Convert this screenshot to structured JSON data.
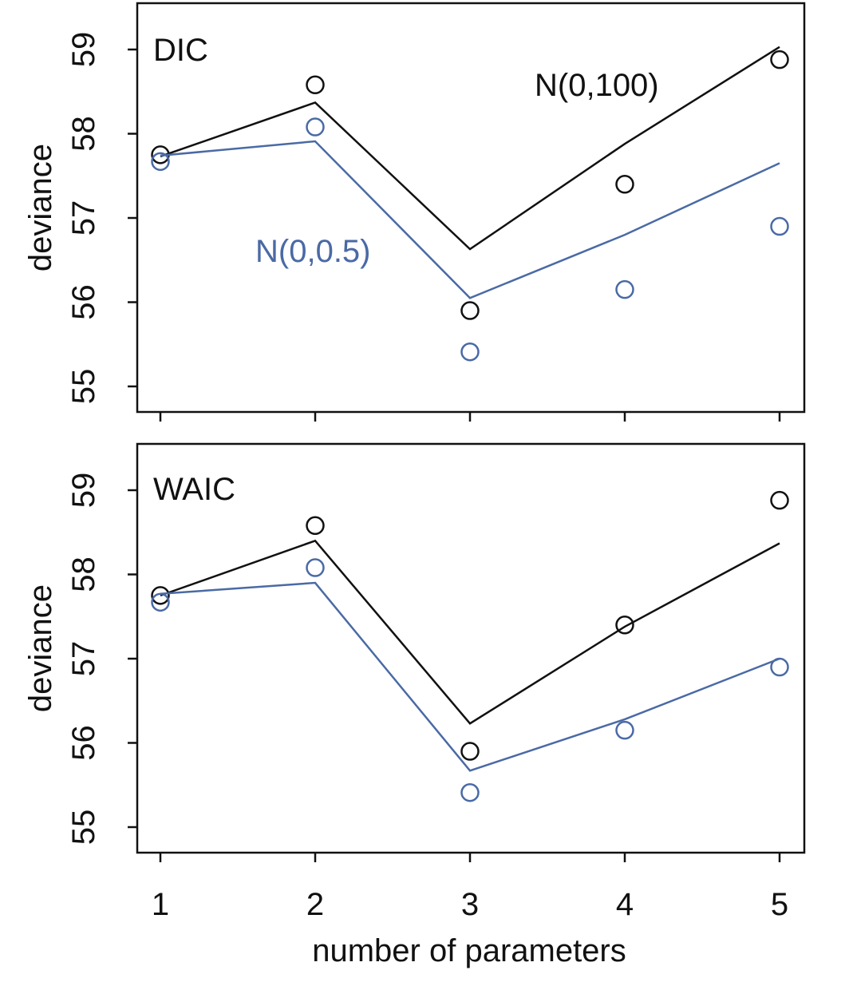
{
  "chart_data": {
    "type": "line",
    "xlabel": "number of parameters",
    "x": [
      1,
      2,
      3,
      4,
      5
    ],
    "ylim": [
      55,
      59.5
    ],
    "yticks": [
      55,
      56,
      57,
      58,
      59
    ],
    "grid": false,
    "colors": {
      "wide_prior": "#111111",
      "narrow_prior": "#4a6aa5"
    },
    "series_labels": {
      "wide_prior": "N(0,100)",
      "narrow_prior": "N(0,0.5)"
    },
    "panels": [
      {
        "title": "DIC",
        "ylabel": "deviance",
        "series": [
          {
            "name": "N(0,100)",
            "color": "#111111",
            "points": [
              57.75,
              58.58,
              55.9,
              57.4,
              58.88
            ],
            "line": [
              57.73,
              58.37,
              56.63,
              57.88,
              59.03
            ]
          },
          {
            "name": "N(0,0.5)",
            "color": "#4a6aa5",
            "points": [
              57.67,
              58.08,
              55.41,
              56.15,
              56.9
            ],
            "line": [
              57.74,
              57.91,
              56.05,
              56.8,
              57.65
            ]
          }
        ]
      },
      {
        "title": "WAIC",
        "ylabel": "deviance",
        "series": [
          {
            "name": "N(0,100)",
            "color": "#111111",
            "points": [
              57.75,
              58.58,
              55.9,
              57.4,
              58.88
            ],
            "line": [
              57.75,
              58.4,
              56.23,
              57.38,
              58.37
            ]
          },
          {
            "name": "N(0,0.5)",
            "color": "#4a6aa5",
            "points": [
              57.67,
              58.08,
              55.41,
              56.15,
              56.9
            ],
            "line": [
              57.77,
              57.9,
              55.67,
              56.28,
              57.0
            ]
          }
        ]
      }
    ]
  }
}
